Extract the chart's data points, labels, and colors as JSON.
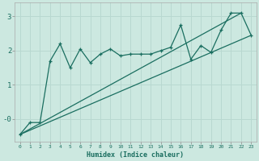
{
  "xlabel": "Humidex (Indice chaleur)",
  "bg_color": "#cce8e0",
  "grid_color": "#b8d8d0",
  "line_color": "#1a6e60",
  "xlim": [
    -0.5,
    23.5
  ],
  "ylim": [
    -0.65,
    3.4
  ],
  "xticks": [
    0,
    1,
    2,
    3,
    4,
    5,
    6,
    7,
    8,
    9,
    10,
    11,
    12,
    13,
    14,
    15,
    16,
    17,
    18,
    19,
    20,
    21,
    22,
    23
  ],
  "yticks": [
    0,
    1,
    2,
    3
  ],
  "ytick_labels": [
    "-0",
    "1",
    "2",
    "3"
  ],
  "series1_x": [
    0,
    1,
    2,
    3,
    4,
    5,
    6,
    7,
    8,
    9,
    10,
    11,
    12,
    13,
    14,
    15,
    16,
    17,
    18,
    19,
    20,
    21,
    22,
    23
  ],
  "series1_y": [
    -0.45,
    -0.1,
    -0.1,
    1.7,
    2.2,
    1.5,
    2.05,
    1.65,
    1.9,
    2.05,
    1.85,
    1.9,
    1.9,
    1.9,
    2.0,
    2.1,
    2.75,
    1.75,
    2.15,
    1.95,
    2.6,
    3.1,
    3.1,
    2.45
  ],
  "series2_x": [
    0,
    22
  ],
  "series2_y": [
    -0.45,
    3.1
  ],
  "series3_x": [
    0,
    23
  ],
  "series3_y": [
    -0.45,
    2.45
  ]
}
